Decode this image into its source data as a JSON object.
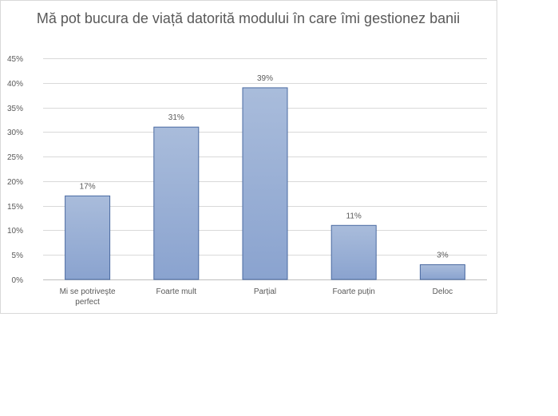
{
  "chart_data": {
    "type": "bar",
    "title": "Mă pot bucura de viață datorită modului în care îmi gestionez banii",
    "categories": [
      [
        "Mi se potriveşte",
        "perfect"
      ],
      [
        "Foarte mult"
      ],
      [
        "Parțial"
      ],
      [
        "Foarte puțin"
      ],
      [
        "Deloc"
      ]
    ],
    "values": [
      17,
      31,
      39,
      11,
      3
    ],
    "value_labels": [
      "17%",
      "31%",
      "39%",
      "11%",
      "3%"
    ],
    "ylim": [
      0,
      45
    ],
    "yticks": [
      0,
      5,
      10,
      15,
      20,
      25,
      30,
      35,
      40,
      45
    ],
    "ytick_labels": [
      "0%",
      "5%",
      "10%",
      "15%",
      "20%",
      "25%",
      "30%",
      "35%",
      "40%",
      "45%"
    ],
    "grid": true,
    "legend": "none",
    "bar_color_top": "#a9bcdb",
    "bar_color_bottom": "#8aa3cf",
    "bar_stroke": "#4a6aa1"
  }
}
